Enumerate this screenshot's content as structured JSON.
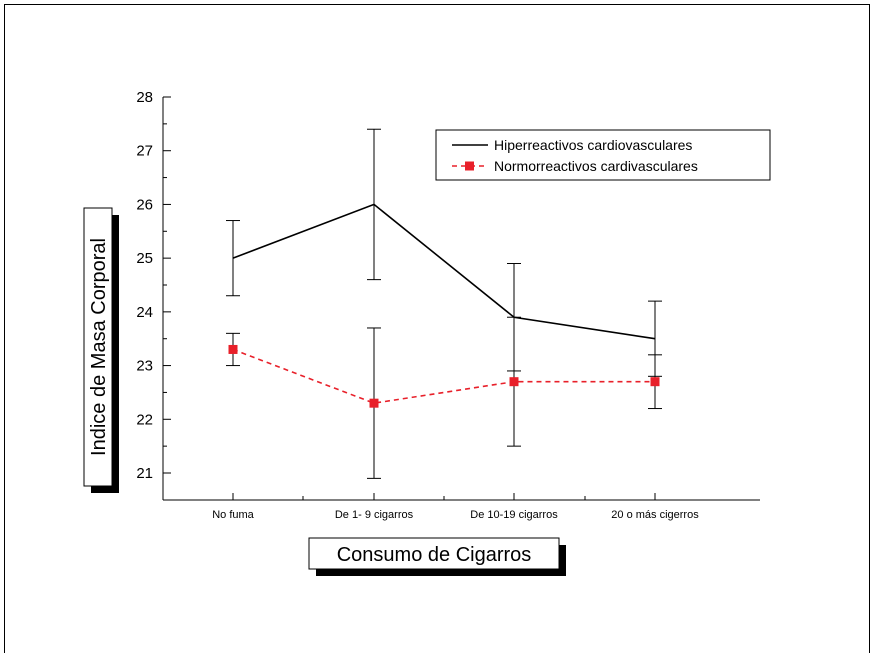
{
  "chart_data": {
    "type": "line",
    "categories": [
      "No fuma",
      "De 1- 9 cigarros",
      "De 10-19 cigarros",
      "20 o más cigerros"
    ],
    "xlabel": "Consumo de Cigarros",
    "ylabel": "Indice de Masa Corporal",
    "ylim": [
      21,
      28
    ],
    "yticks": [
      "21",
      "22",
      "23",
      "24",
      "25",
      "26",
      "27",
      "28"
    ],
    "grid": false,
    "legend_position": "top-right",
    "series": [
      {
        "name": "Hiperreactivos cardiovasculares",
        "values": [
          25.0,
          26.0,
          23.9,
          23.5
        ],
        "err_low": [
          24.3,
          24.6,
          22.9,
          22.8
        ],
        "err_high": [
          25.7,
          27.4,
          24.9,
          24.2
        ],
        "color": "#000000",
        "style": "solid",
        "marker": "none"
      },
      {
        "name": "Normorreactivos cardivasculares",
        "values": [
          23.3,
          22.3,
          22.7,
          22.7
        ],
        "err_low": [
          23.0,
          20.9,
          21.5,
          22.2
        ],
        "err_high": [
          23.6,
          23.7,
          23.9,
          23.2
        ],
        "color": "#e8202a",
        "style": "dashed",
        "marker": "square"
      }
    ]
  }
}
